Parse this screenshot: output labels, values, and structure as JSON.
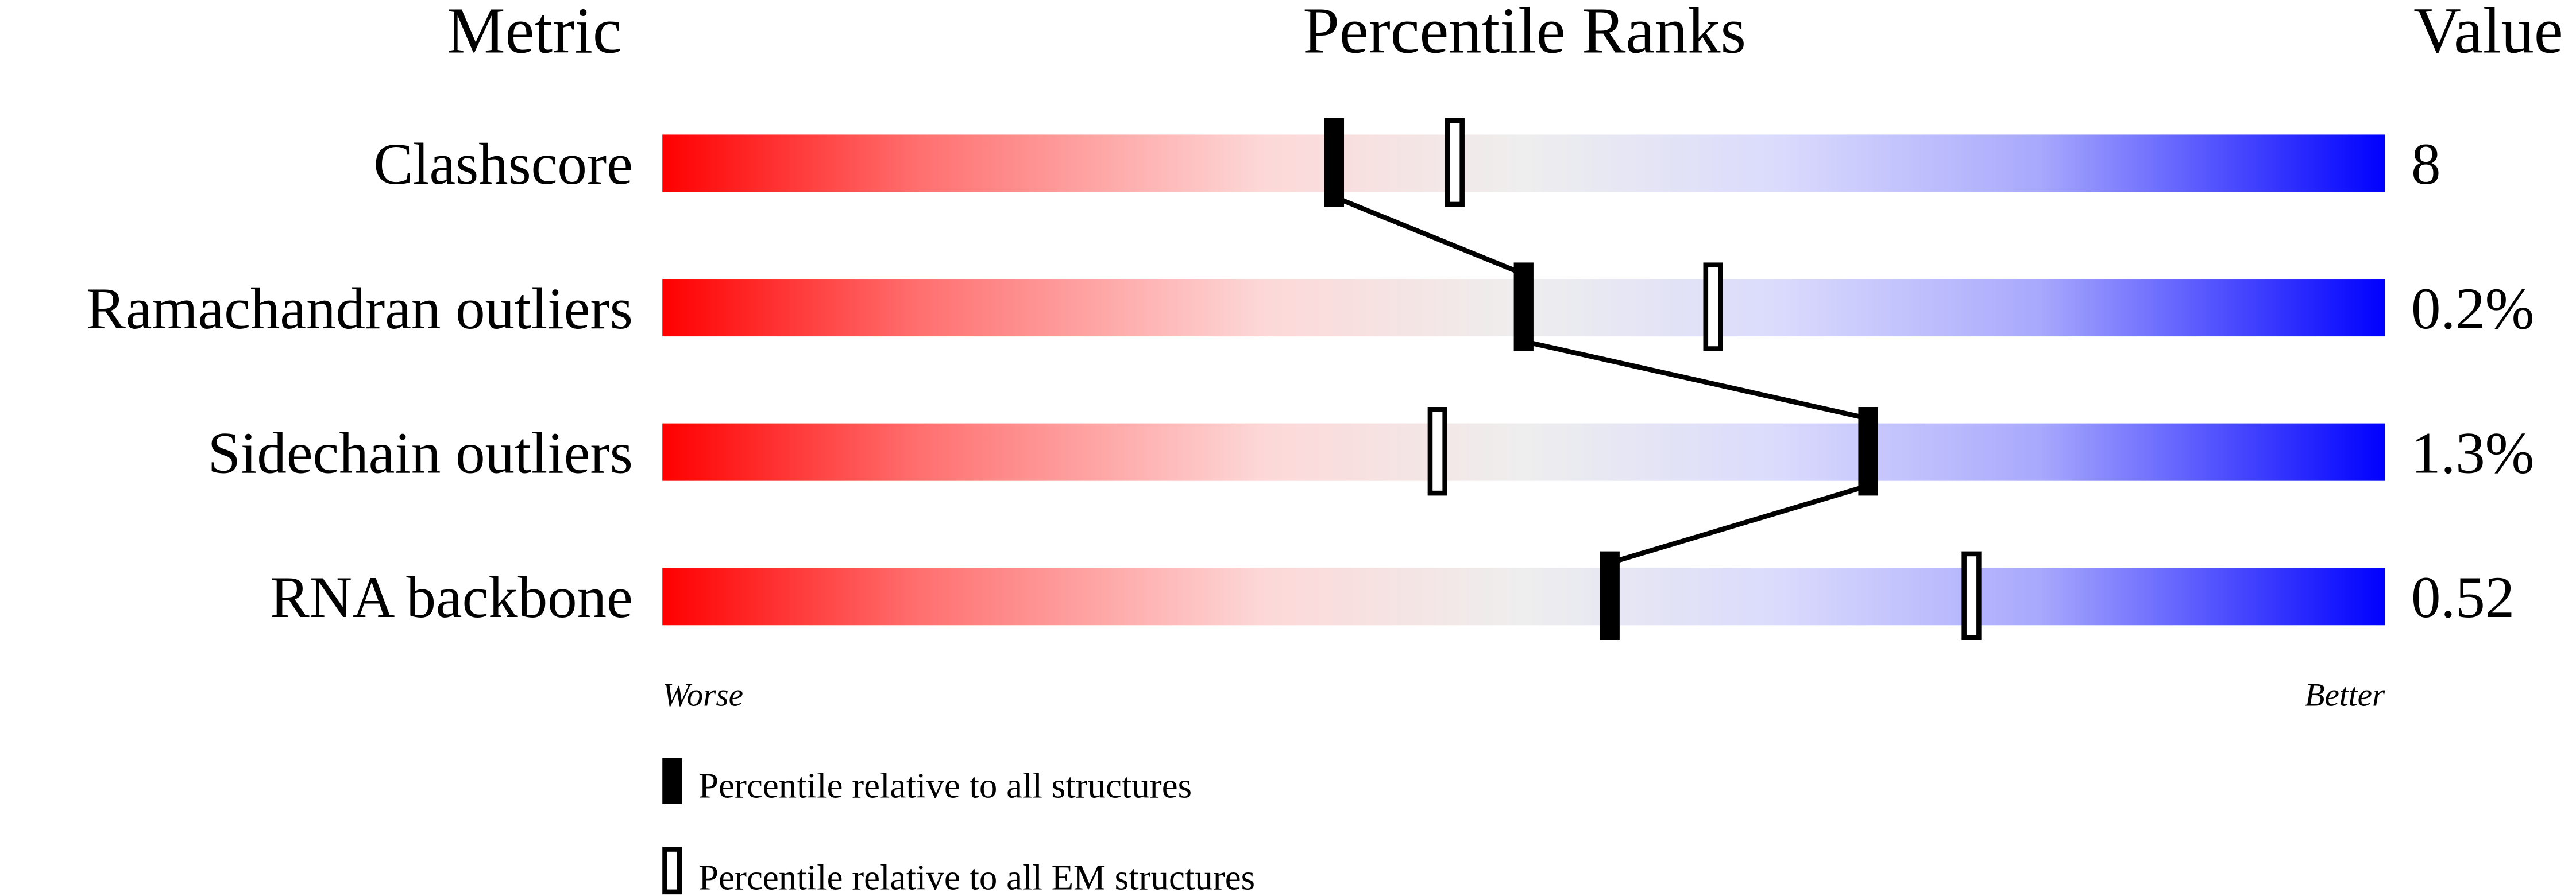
{
  "chart_data": {
    "type": "percentile-slider",
    "headers": {
      "metric": "Metric",
      "ranks": "Percentile Ranks",
      "value": "Value"
    },
    "axis": {
      "min": 0,
      "max": 100,
      "left_label": "Worse",
      "right_label": "Better"
    },
    "colors": {
      "worse": "#ff0000",
      "neutral": "#eeeeee",
      "better": "#0000ff"
    },
    "rows": [
      {
        "metric": "Clashscore",
        "value": "8",
        "percentile_all": 39,
        "percentile_em": 46
      },
      {
        "metric": "Ramachandran outliers",
        "value": "0.2%",
        "percentile_all": 50,
        "percentile_em": 61
      },
      {
        "metric": "Sidechain outliers",
        "value": "1.3%",
        "percentile_all": 70,
        "percentile_em": 45
      },
      {
        "metric": "RNA backbone",
        "value": "0.52",
        "percentile_all": 55,
        "percentile_em": 76
      }
    ],
    "legend": [
      {
        "marker": "filled",
        "label": "Percentile relative to all structures"
      },
      {
        "marker": "open",
        "label": "Percentile relative to all EM structures"
      }
    ]
  }
}
